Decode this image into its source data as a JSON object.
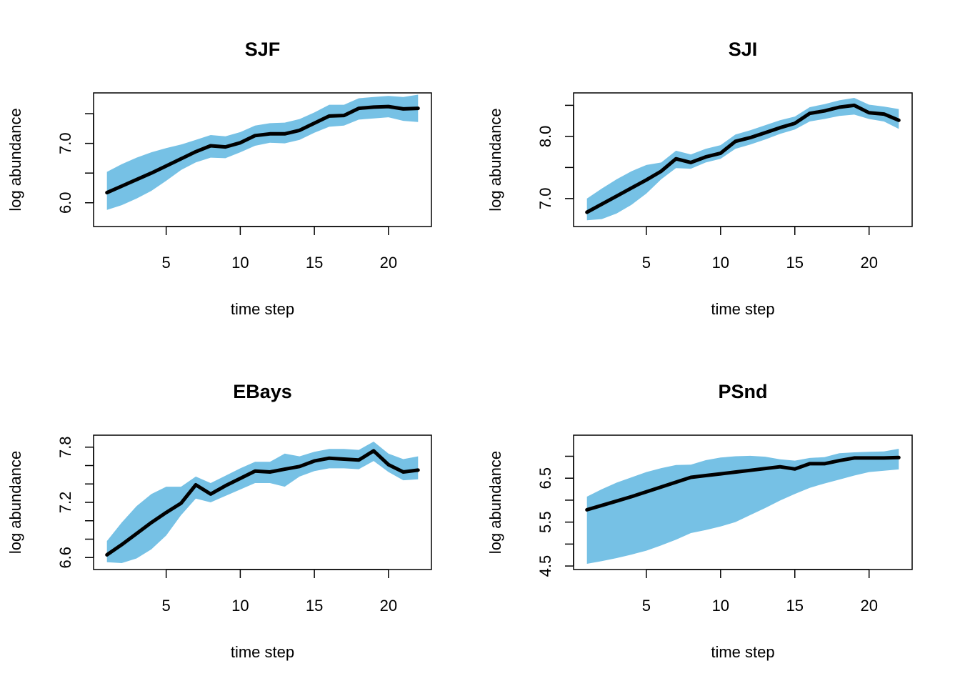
{
  "colors": {
    "band": "#76c1e5",
    "line": "#000000",
    "axis": "#000000"
  },
  "chart_data": [
    {
      "type": "area",
      "title": "SJF",
      "xlabel": "time step",
      "ylabel": "log abundance",
      "xlim": [
        0.1,
        22.9
      ],
      "ylim": [
        5.6,
        7.85
      ],
      "xticks": [
        5,
        10,
        15,
        20
      ],
      "yticks": [
        6.0,
        6.5,
        7.0,
        7.5
      ],
      "ytick_labels": [
        "6.0",
        "",
        "7.0",
        ""
      ],
      "x": [
        1,
        2,
        3,
        4,
        5,
        6,
        7,
        8,
        9,
        10,
        11,
        12,
        13,
        14,
        15,
        16,
        17,
        18,
        19,
        20,
        21,
        22
      ],
      "series": [
        {
          "role": "mean",
          "values": [
            6.17,
            6.28,
            6.39,
            6.5,
            6.62,
            6.74,
            6.86,
            6.96,
            6.94,
            7.01,
            7.13,
            7.16,
            7.16,
            7.22,
            7.34,
            7.46,
            7.47,
            7.59,
            7.61,
            7.62,
            7.58,
            7.59
          ]
        },
        {
          "role": "upper",
          "values": [
            6.52,
            6.65,
            6.76,
            6.85,
            6.92,
            6.98,
            7.06,
            7.14,
            7.12,
            7.19,
            7.3,
            7.34,
            7.35,
            7.41,
            7.52,
            7.65,
            7.65,
            7.76,
            7.78,
            7.8,
            7.78,
            7.82
          ]
        },
        {
          "role": "lower",
          "values": [
            5.88,
            5.96,
            6.07,
            6.2,
            6.37,
            6.55,
            6.68,
            6.76,
            6.75,
            6.85,
            6.96,
            7.01,
            7.0,
            7.06,
            7.18,
            7.28,
            7.3,
            7.4,
            7.42,
            7.44,
            7.38,
            7.36
          ]
        }
      ]
    },
    {
      "type": "area",
      "title": "SJI",
      "xlabel": "time step",
      "ylabel": "log abundance",
      "xlim": [
        0.1,
        22.9
      ],
      "ylim": [
        6.55,
        8.7
      ],
      "xticks": [
        5,
        10,
        15,
        20
      ],
      "yticks": [
        7.0,
        7.5,
        8.0,
        8.5
      ],
      "ytick_labels": [
        "7.0",
        "",
        "8.0",
        ""
      ],
      "x": [
        1,
        2,
        3,
        4,
        5,
        6,
        7,
        8,
        9,
        10,
        11,
        12,
        13,
        14,
        15,
        16,
        17,
        18,
        19,
        20,
        21,
        22
      ],
      "series": [
        {
          "role": "mean",
          "values": [
            6.78,
            6.91,
            7.04,
            7.17,
            7.3,
            7.44,
            7.64,
            7.58,
            7.67,
            7.73,
            7.92,
            7.98,
            8.06,
            8.14,
            8.21,
            8.37,
            8.41,
            8.47,
            8.5,
            8.38,
            8.36,
            8.26
          ]
        },
        {
          "role": "upper",
          "values": [
            7.0,
            7.16,
            7.31,
            7.44,
            7.54,
            7.58,
            7.77,
            7.71,
            7.8,
            7.86,
            8.03,
            8.1,
            8.18,
            8.26,
            8.32,
            8.47,
            8.52,
            8.58,
            8.62,
            8.51,
            8.48,
            8.44
          ]
        },
        {
          "role": "lower",
          "values": [
            6.65,
            6.67,
            6.76,
            6.9,
            7.08,
            7.31,
            7.49,
            7.48,
            7.58,
            7.64,
            7.8,
            7.87,
            7.95,
            8.04,
            8.11,
            8.24,
            8.28,
            8.33,
            8.35,
            8.28,
            8.24,
            8.12
          ]
        }
      ]
    },
    {
      "type": "area",
      "title": "EBays",
      "xlabel": "time step",
      "ylabel": "log abundance",
      "xlim": [
        0.1,
        22.9
      ],
      "ylim": [
        6.47,
        7.93
      ],
      "xticks": [
        5,
        10,
        15,
        20
      ],
      "yticks": [
        6.6,
        6.8,
        7.0,
        7.2,
        7.4,
        7.6,
        7.8
      ],
      "ytick_labels": [
        "6.6",
        "",
        "",
        "7.2",
        "",
        "",
        "7.8"
      ],
      "x": [
        1,
        2,
        3,
        4,
        5,
        6,
        7,
        8,
        9,
        10,
        11,
        12,
        13,
        14,
        15,
        16,
        17,
        18,
        19,
        20,
        21,
        22
      ],
      "series": [
        {
          "role": "mean",
          "values": [
            6.63,
            6.74,
            6.86,
            6.98,
            7.09,
            7.19,
            7.39,
            7.29,
            7.38,
            7.46,
            7.54,
            7.53,
            7.56,
            7.59,
            7.65,
            7.68,
            7.67,
            7.66,
            7.76,
            7.61,
            7.53,
            7.55
          ]
        },
        {
          "role": "upper",
          "values": [
            6.78,
            6.98,
            7.16,
            7.29,
            7.37,
            7.37,
            7.48,
            7.41,
            7.49,
            7.57,
            7.64,
            7.64,
            7.73,
            7.7,
            7.75,
            7.78,
            7.78,
            7.77,
            7.86,
            7.73,
            7.67,
            7.7
          ]
        },
        {
          "role": "lower",
          "values": [
            6.55,
            6.54,
            6.59,
            6.69,
            6.84,
            7.06,
            7.24,
            7.2,
            7.27,
            7.34,
            7.41,
            7.41,
            7.37,
            7.48,
            7.54,
            7.57,
            7.57,
            7.56,
            7.65,
            7.53,
            7.44,
            7.45
          ]
        }
      ]
    },
    {
      "type": "area",
      "title": "PSnd",
      "xlabel": "time step",
      "ylabel": "log abundance",
      "xlim": [
        0.1,
        22.9
      ],
      "ylim": [
        4.42,
        7.48
      ],
      "xticks": [
        5,
        10,
        15,
        20
      ],
      "yticks": [
        4.5,
        5.0,
        5.5,
        6.0,
        6.5,
        7.0
      ],
      "ytick_labels": [
        "4.5",
        "",
        "5.5",
        "",
        "6.5",
        ""
      ],
      "x": [
        1,
        2,
        3,
        4,
        5,
        6,
        7,
        8,
        9,
        10,
        11,
        12,
        13,
        14,
        15,
        16,
        17,
        18,
        19,
        20,
        21,
        22
      ],
      "series": [
        {
          "role": "mean",
          "values": [
            5.78,
            5.88,
            5.98,
            6.08,
            6.19,
            6.3,
            6.41,
            6.52,
            6.56,
            6.6,
            6.64,
            6.68,
            6.72,
            6.76,
            6.71,
            6.83,
            6.83,
            6.9,
            6.96,
            6.96,
            6.96,
            6.97
          ]
        },
        {
          "role": "upper",
          "values": [
            6.08,
            6.25,
            6.4,
            6.52,
            6.64,
            6.73,
            6.8,
            6.81,
            6.91,
            6.97,
            7.0,
            7.01,
            6.99,
            6.93,
            6.9,
            6.96,
            6.98,
            7.07,
            7.09,
            7.1,
            7.11,
            7.17
          ]
        },
        {
          "role": "lower",
          "values": [
            4.55,
            4.61,
            4.68,
            4.76,
            4.85,
            4.97,
            5.1,
            5.25,
            5.32,
            5.4,
            5.5,
            5.66,
            5.82,
            5.99,
            6.14,
            6.28,
            6.38,
            6.47,
            6.56,
            6.64,
            6.67,
            6.7
          ]
        }
      ]
    }
  ]
}
